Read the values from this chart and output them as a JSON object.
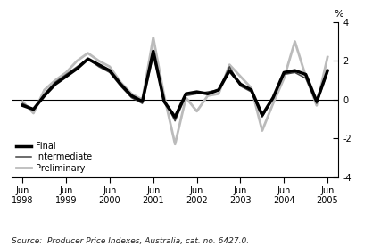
{
  "ylim": [
    -4,
    4
  ],
  "yticks": [
    -4,
    -2,
    0,
    2,
    4
  ],
  "source_text": "Source:  Producer Price Indexes, Australia, cat. no. 6427.0.",
  "x_labels": [
    "Jun\n1998",
    "Jun\n1999",
    "Jun\n2000",
    "Jun\n2001",
    "Jun\n2002",
    "Jun\n2003",
    "Jun\n2004",
    "Jun\n2005"
  ],
  "x_tick_positions": [
    0,
    4,
    8,
    12,
    16,
    20,
    24,
    28
  ],
  "final_color": "#000000",
  "intermediate_color": "#444444",
  "preliminary_color": "#bbbbbb",
  "final_lw": 2.5,
  "intermediate_lw": 1.1,
  "preliminary_lw": 2.0,
  "final": [
    -0.3,
    -0.5,
    0.2,
    0.8,
    1.2,
    1.6,
    2.1,
    1.8,
    1.5,
    0.8,
    0.2,
    -0.1,
    2.5,
    -0.1,
    -0.9,
    0.3,
    0.4,
    0.3,
    0.5,
    1.5,
    0.8,
    0.5,
    -0.8,
    0.1,
    1.4,
    1.5,
    1.3,
    -0.1,
    1.5
  ],
  "intermediate": [
    -0.2,
    -0.5,
    0.3,
    0.9,
    1.3,
    1.7,
    2.1,
    1.7,
    1.4,
    0.7,
    0.1,
    -0.2,
    2.3,
    0.0,
    -1.1,
    0.2,
    0.3,
    0.4,
    0.5,
    1.7,
    0.7,
    0.4,
    -0.9,
    0.1,
    1.3,
    1.4,
    1.1,
    -0.2,
    1.4
  ],
  "preliminary": [
    -0.1,
    -0.7,
    0.5,
    1.0,
    1.4,
    2.0,
    2.4,
    2.0,
    1.7,
    0.9,
    0.3,
    0.0,
    3.2,
    0.2,
    -2.3,
    0.1,
    -0.6,
    0.2,
    0.3,
    1.8,
    1.2,
    0.6,
    -1.6,
    -0.2,
    1.1,
    3.0,
    1.2,
    -0.3,
    2.2
  ]
}
